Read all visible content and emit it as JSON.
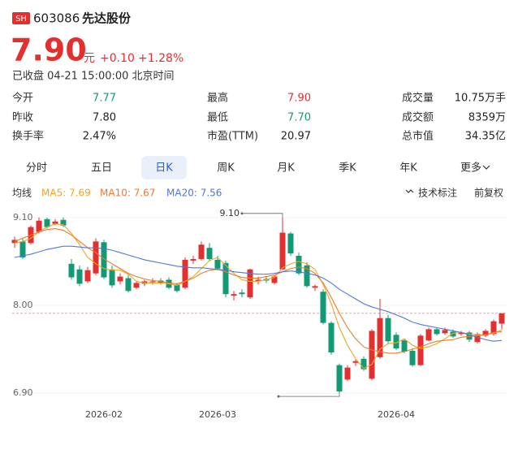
{
  "header": {
    "badge": "SH",
    "code": "603086",
    "name": "先达股份",
    "price": "7.90",
    "unit": "元",
    "change": "+0.10",
    "change_pct": "+1.28%",
    "status": "已收盘 04-21 15:00:00 北京时间"
  },
  "stats": [
    [
      "今开",
      "7.77",
      "最高",
      "7.90",
      "成交量",
      "10.75万手"
    ],
    [
      "昨收",
      "7.80",
      "最低",
      "7.70",
      "成交额",
      "8359万"
    ],
    [
      "换手率",
      "2.47%",
      "市盈(TTM)",
      "20.97",
      "总市值",
      "34.35亿"
    ]
  ],
  "tabs": [
    "分时",
    "五日",
    "日K",
    "周K",
    "月K",
    "季K",
    "年K",
    "更多"
  ],
  "selected_tab": 2,
  "tools": [
    "技术标注",
    "前复权"
  ],
  "chart_data": {
    "type": "candlestick",
    "ma_title": "均线",
    "categories": [
      null,
      null,
      null,
      null,
      null,
      null,
      null,
      null,
      null,
      null,
      null,
      "2026-02",
      null,
      null,
      null,
      null,
      null,
      null,
      null,
      null,
      null,
      null,
      null,
      null,
      null,
      "2026-03",
      null,
      null,
      null,
      null,
      null,
      null,
      null,
      null,
      null,
      null,
      null,
      null,
      null,
      null,
      null,
      null,
      null,
      null,
      null,
      null,
      null,
      "2026-04",
      null,
      null,
      null,
      null,
      null,
      null,
      null,
      null,
      null,
      null,
      null,
      null,
      null
    ],
    "open": [
      8.78,
      8.8,
      8.78,
      8.92,
      9.08,
      9.02,
      9.07,
      8.52,
      8.45,
      8.3,
      8.4,
      8.79,
      8.45,
      8.3,
      8.34,
      8.22,
      8.27,
      8.29,
      8.31,
      8.32,
      8.26,
      8.22,
      8.56,
      8.58,
      8.72,
      8.57,
      8.53,
      8.12,
      8.16,
      8.1,
      8.3,
      8.33,
      8.28,
      8.45,
      8.9,
      8.62,
      8.5,
      8.22,
      8.17,
      7.78,
      7.25,
      7.07,
      7.28,
      7.33,
      7.08,
      7.35,
      7.84,
      7.63,
      7.56,
      7.43,
      7.25,
      7.56,
      7.7,
      7.65,
      7.67,
      7.64,
      7.66,
      7.54,
      7.62,
      7.64,
      7.77
    ],
    "high": [
      8.86,
      8.84,
      9.0,
      9.1,
      9.1,
      9.08,
      9.1,
      8.58,
      8.5,
      8.48,
      8.84,
      8.82,
      8.5,
      8.4,
      8.38,
      8.3,
      8.32,
      8.34,
      8.34,
      8.35,
      8.28,
      8.6,
      8.62,
      8.8,
      8.78,
      8.62,
      8.56,
      8.18,
      8.2,
      8.46,
      8.36,
      8.36,
      8.38,
      9.1,
      8.92,
      8.66,
      8.54,
      8.26,
      8.2,
      7.8,
      7.27,
      7.25,
      7.32,
      7.36,
      7.7,
      8.08,
      7.88,
      7.66,
      7.58,
      7.46,
      7.64,
      7.72,
      7.72,
      7.72,
      7.7,
      7.68,
      7.68,
      7.66,
      7.7,
      7.82,
      7.9
    ],
    "low": [
      8.72,
      8.58,
      8.76,
      8.9,
      8.96,
      9.0,
      8.98,
      8.32,
      8.24,
      8.28,
      8.38,
      8.33,
      8.22,
      8.26,
      8.16,
      8.2,
      8.24,
      8.26,
      8.26,
      8.2,
      8.16,
      8.2,
      8.52,
      8.56,
      8.55,
      8.44,
      8.1,
      8.06,
      8.1,
      8.08,
      8.26,
      8.28,
      8.26,
      8.44,
      8.62,
      8.38,
      8.22,
      8.18,
      7.76,
      7.38,
      6.9,
      7.05,
      7.24,
      7.18,
      7.06,
      7.33,
      7.52,
      7.44,
      7.4,
      7.23,
      7.24,
      7.55,
      7.62,
      7.63,
      7.59,
      7.62,
      7.54,
      7.52,
      7.6,
      7.62,
      7.7
    ],
    "close": [
      8.82,
      8.6,
      8.98,
      9.06,
      8.98,
      9.05,
      9.0,
      8.35,
      8.27,
      8.44,
      8.8,
      8.35,
      8.25,
      8.36,
      8.18,
      8.28,
      8.3,
      8.3,
      8.28,
      8.22,
      8.18,
      8.57,
      8.58,
      8.76,
      8.58,
      8.46,
      8.14,
      8.14,
      8.14,
      8.45,
      8.32,
      8.31,
      8.36,
      8.91,
      8.65,
      8.4,
      8.24,
      8.24,
      7.78,
      7.41,
      6.92,
      7.22,
      7.3,
      7.2,
      7.68,
      7.84,
      7.55,
      7.46,
      7.42,
      7.25,
      7.62,
      7.7,
      7.64,
      7.69,
      7.61,
      7.66,
      7.57,
      7.64,
      7.68,
      7.8,
      7.9
    ],
    "up_color": "#e42f2f",
    "down_color": "#119a73",
    "series": [
      {
        "label": "MA5: 7.69",
        "color": "#f2a51f",
        "values": [
          8.78,
          8.8,
          8.84,
          8.92,
          8.98,
          9.02,
          9.01,
          8.9,
          8.76,
          8.6,
          8.52,
          8.46,
          8.44,
          8.44,
          8.39,
          8.3,
          8.28,
          8.28,
          8.28,
          8.27,
          8.25,
          8.3,
          8.36,
          8.46,
          8.56,
          8.6,
          8.5,
          8.4,
          8.32,
          8.3,
          8.3,
          8.32,
          8.35,
          8.47,
          8.52,
          8.55,
          8.52,
          8.45,
          8.26,
          8.02,
          7.72,
          7.5,
          7.33,
          7.21,
          7.26,
          7.45,
          7.52,
          7.53,
          7.58,
          7.5,
          7.46,
          7.48,
          7.52,
          7.58,
          7.65,
          7.66,
          7.64,
          7.63,
          7.63,
          7.65,
          7.69
        ]
      },
      {
        "label": "MA10: 7.67",
        "color": "#ee7a2e",
        "values": [
          8.8,
          8.84,
          8.88,
          8.92,
          8.95,
          8.96,
          8.94,
          8.88,
          8.8,
          8.72,
          8.66,
          8.58,
          8.52,
          8.46,
          8.4,
          8.36,
          8.33,
          8.31,
          8.3,
          8.28,
          8.27,
          8.3,
          8.34,
          8.4,
          8.44,
          8.45,
          8.42,
          8.38,
          8.35,
          8.34,
          8.34,
          8.36,
          8.38,
          8.42,
          8.46,
          8.48,
          8.46,
          8.4,
          8.28,
          8.1,
          7.9,
          7.72,
          7.58,
          7.48,
          7.44,
          7.42,
          7.4,
          7.4,
          7.42,
          7.45,
          7.48,
          7.52,
          7.55,
          7.56,
          7.57,
          7.6,
          7.61,
          7.62,
          7.63,
          7.66,
          7.67
        ]
      },
      {
        "label": "MA20: 7.56",
        "color": "#4f78d8",
        "values": [
          8.6,
          8.62,
          8.64,
          8.67,
          8.7,
          8.72,
          8.74,
          8.74,
          8.73,
          8.72,
          8.72,
          8.71,
          8.69,
          8.66,
          8.63,
          8.6,
          8.57,
          8.55,
          8.53,
          8.51,
          8.49,
          8.48,
          8.47,
          8.47,
          8.46,
          8.45,
          8.44,
          8.42,
          8.41,
          8.4,
          8.39,
          8.39,
          8.4,
          8.42,
          8.43,
          8.42,
          8.4,
          8.38,
          8.34,
          8.28,
          8.2,
          8.14,
          8.08,
          8.02,
          7.98,
          7.95,
          7.92,
          7.88,
          7.84,
          7.79,
          7.76,
          7.74,
          7.72,
          7.7,
          7.68,
          7.66,
          7.63,
          7.6,
          7.57,
          7.55,
          7.56
        ]
      }
    ],
    "price_line": 7.9,
    "annotations": [
      {
        "index": 33,
        "value": 9.1,
        "label": "9.10"
      },
      {
        "index": 40,
        "value": 6.9
      }
    ],
    "ylim": [
      6.84,
      9.2
    ],
    "yticks": [
      {
        "value": 9.1,
        "label": "9.10"
      },
      {
        "value": 8,
        "label": "8.00"
      },
      {
        "value": 6.9,
        "label": "6.90"
      }
    ],
    "grid": true
  }
}
